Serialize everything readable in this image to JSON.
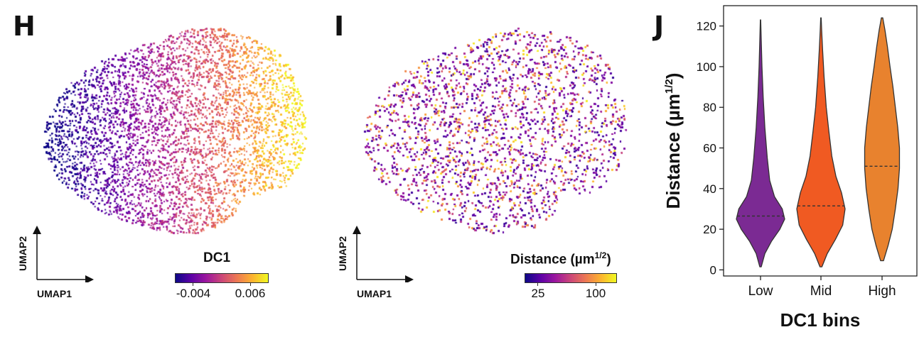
{
  "panels": {
    "h": {
      "letter": "H",
      "xlabel": "UMAP1",
      "ylabel": "UMAP2",
      "colorbar": {
        "title": "DC1",
        "ticks": [
          "-0.004",
          "0.006"
        ],
        "colormap": "plasma"
      }
    },
    "i": {
      "letter": "I",
      "xlabel": "UMAP1",
      "ylabel": "UMAP2",
      "colorbar": {
        "title_main": "Distance (µm",
        "title_sup": "1/2",
        "title_end": ")",
        "ticks": [
          "25",
          "100"
        ],
        "colormap": "plasma"
      }
    },
    "j": {
      "letter": "J"
    }
  },
  "colors": {
    "plasma": [
      "#0d0887",
      "#5c01a6",
      "#9c179e",
      "#cc4778",
      "#ed7953",
      "#fdb42f",
      "#f0f921"
    ],
    "low": "#7b2a93",
    "mid": "#f05a22",
    "high": "#e8822e"
  },
  "chart_data": {
    "type": "violin",
    "title": "",
    "xlabel": "DC1 bins",
    "ylabel_main": "Distance (µm",
    "ylabel_sup": "1/2",
    "ylabel_end": ")",
    "categories": [
      "Low",
      "Mid",
      "High"
    ],
    "medians": [
      26.5,
      31.5,
      51
    ],
    "ranges": [
      [
        1.5,
        123
      ],
      [
        1.5,
        124
      ],
      [
        4.5,
        124
      ]
    ],
    "ylim": [
      -3,
      130
    ],
    "yticks": [
      0,
      20,
      40,
      60,
      80,
      100,
      120
    ],
    "density_profiles": [
      [
        [
          1.5,
          0.03
        ],
        [
          8,
          0.18
        ],
        [
          14,
          0.45
        ],
        [
          20,
          0.8
        ],
        [
          25,
          1.0
        ],
        [
          30,
          0.9
        ],
        [
          36,
          0.58
        ],
        [
          44,
          0.38
        ],
        [
          55,
          0.28
        ],
        [
          70,
          0.18
        ],
        [
          85,
          0.11
        ],
        [
          100,
          0.06
        ],
        [
          113,
          0.03
        ],
        [
          123,
          0.008
        ]
      ],
      [
        [
          1.5,
          0.04
        ],
        [
          8,
          0.26
        ],
        [
          15,
          0.6
        ],
        [
          22,
          0.9
        ],
        [
          30,
          1.0
        ],
        [
          38,
          0.85
        ],
        [
          46,
          0.62
        ],
        [
          56,
          0.45
        ],
        [
          68,
          0.33
        ],
        [
          80,
          0.22
        ],
        [
          95,
          0.13
        ],
        [
          108,
          0.07
        ],
        [
          118,
          0.03
        ],
        [
          124,
          0.01
        ]
      ],
      [
        [
          4.5,
          0.06
        ],
        [
          12,
          0.25
        ],
        [
          20,
          0.42
        ],
        [
          30,
          0.55
        ],
        [
          40,
          0.66
        ],
        [
          50,
          0.72
        ],
        [
          60,
          0.72
        ],
        [
          70,
          0.65
        ],
        [
          80,
          0.55
        ],
        [
          90,
          0.45
        ],
        [
          100,
          0.33
        ],
        [
          110,
          0.22
        ],
        [
          118,
          0.12
        ],
        [
          124,
          0.03
        ]
      ]
    ]
  }
}
